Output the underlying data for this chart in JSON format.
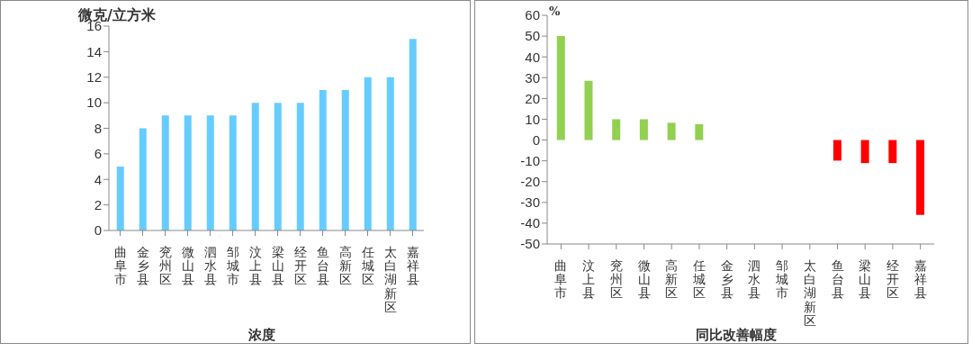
{
  "chart_data": [
    {
      "type": "bar",
      "ylabel": "微克/立方米",
      "xlabel": "浓度",
      "categories": [
        "曲阜市",
        "金乡县",
        "兖州区",
        "微山县",
        "泗水县",
        "邹城市",
        "汶上县",
        "梁山县",
        "经开区",
        "鱼台县",
        "高新区",
        "任城区",
        "太白湖新区",
        "嘉祥县"
      ],
      "series": [
        {
          "color": "#66ccff",
          "values": [
            5,
            8,
            9,
            9,
            9,
            9,
            10,
            10,
            10,
            11,
            11,
            12,
            12,
            15
          ]
        }
      ],
      "ylim": [
        0,
        16
      ],
      "yticks": [
        0,
        2,
        4,
        6,
        8,
        10,
        12,
        14,
        16
      ],
      "grid": false,
      "legend": false
    },
    {
      "type": "bar",
      "ylabel": "%",
      "xlabel": "同比改善幅度",
      "categories": [
        "曲阜市",
        "汶上县",
        "兖州区",
        "微山县",
        "高新区",
        "任城区",
        "金乡县",
        "泗水县",
        "邹城市",
        "太白湖新区",
        "鱼台县",
        "梁山县",
        "经开区",
        "嘉祥县"
      ],
      "series": [
        {
          "colors": [
            "#92d050",
            "#92d050",
            "#92d050",
            "#92d050",
            "#92d050",
            "#92d050",
            "#92d050",
            "#92d050",
            "#92d050",
            "#92d050",
            "#ff0000",
            "#ff0000",
            "#ff0000",
            "#ff0000"
          ],
          "values": [
            50,
            28.5,
            10,
            10,
            8.3,
            7.6,
            0,
            0,
            0,
            0,
            -9.9,
            -11.1,
            -11.1,
            -36
          ]
        }
      ],
      "ylim": [
        -50,
        60
      ],
      "yticks": [
        -50,
        -40,
        -30,
        -20,
        -10,
        0,
        10,
        20,
        30,
        40,
        50,
        60
      ],
      "grid": false,
      "legend": false
    }
  ]
}
